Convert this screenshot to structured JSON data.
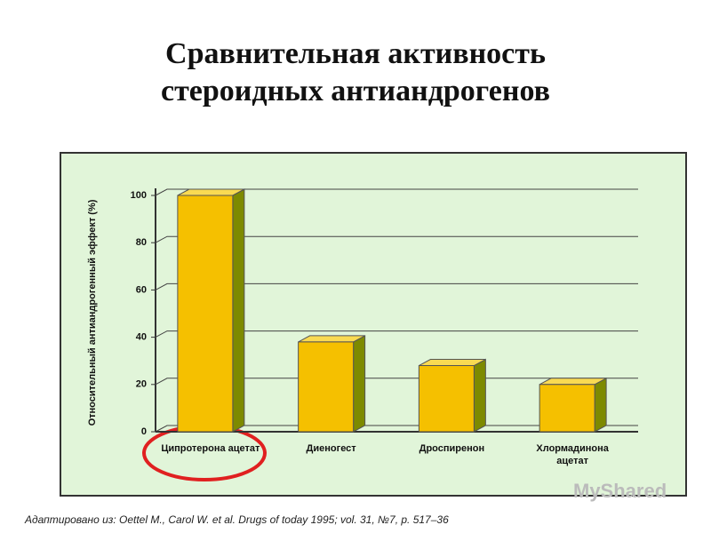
{
  "chart_data": {
    "type": "bar",
    "title": "Сравнительная активность стероидных антиандрогенов",
    "y_label": "Относительный антиандрогенный эффект (%)",
    "categories": [
      "Ципротерона ацетат",
      "Диеногест",
      "Дроспиренон",
      "Хлормадинона ацетат"
    ],
    "values": [
      100,
      38,
      28,
      20
    ],
    "color": "#f5c000",
    "ylim": [
      0,
      100
    ],
    "yticks": [
      0,
      20,
      40,
      60,
      80,
      100
    ],
    "grid": true,
    "source": "Адаптировано из: Oettel M., Carol W. et al. Drugs of today 1995; vol. 31, №7, p. 517–36",
    "watermark": "MyShared"
  }
}
